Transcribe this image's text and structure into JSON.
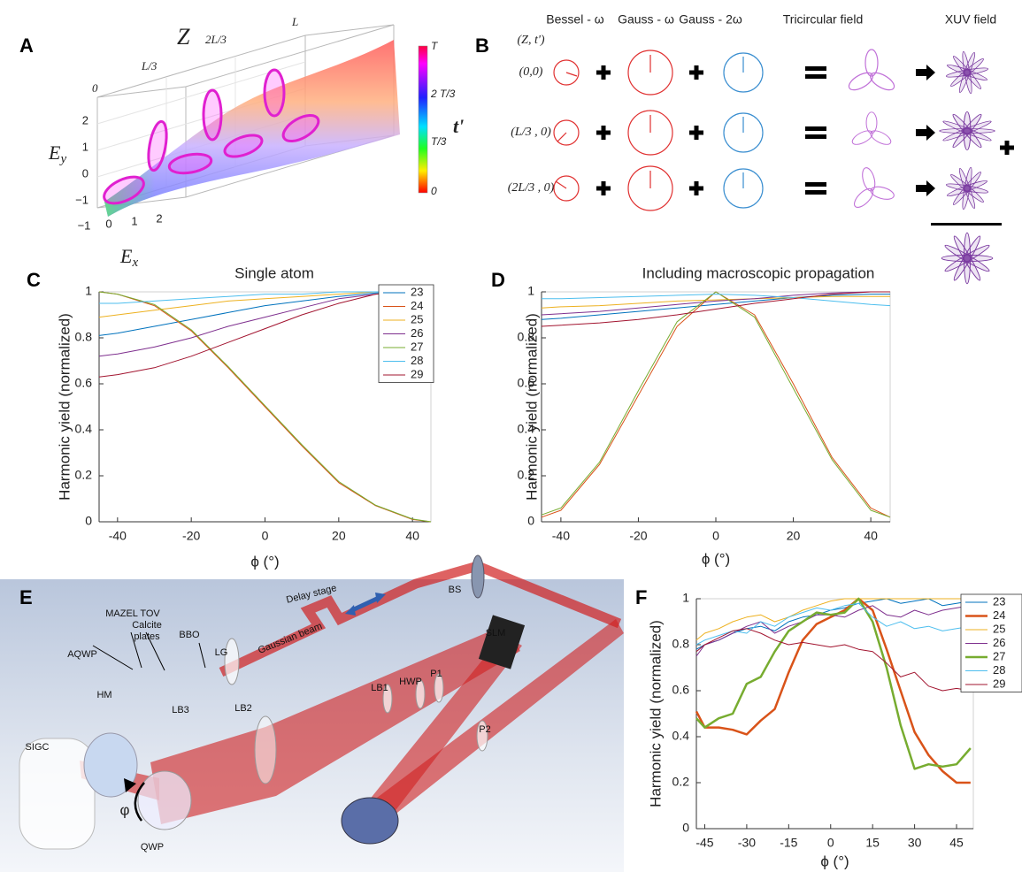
{
  "panel_a": {
    "label": "A",
    "z_title": "Z",
    "z_ticks": [
      "0",
      "L/3",
      "2L/3",
      "L"
    ],
    "ey": [
      "E",
      "y"
    ],
    "ex": [
      "E",
      "x"
    ],
    "ey_ticks": [
      "2",
      "1",
      "0",
      "−1"
    ],
    "ex_ticks": [
      "−1",
      "0",
      "1",
      "2"
    ],
    "colorbar_title": "t'",
    "colorbar_ticks": [
      "T",
      "2 T/3",
      "T/3",
      "0"
    ]
  },
  "panel_b": {
    "label": "B",
    "columns": [
      "Bessel - ω",
      "Gauss - ω",
      "Gauss - 2ω",
      "Tricircular field",
      "XUV field"
    ],
    "row_header": "(Z, t')",
    "rows": [
      "(0,0)",
      "(L/3 , 0)",
      "(2L/3 , 0)"
    ]
  },
  "panel_e": {
    "label": "E",
    "mazel_tov": "MAZEL TOV",
    "calcite_plates": [
      "Calcite",
      "plates"
    ],
    "bbo": "BBO",
    "aqwp": "AQWP",
    "lg": "LG",
    "gaussian_beam": "Gaussian beam",
    "delay_stage": "Delay stage",
    "bs": "BS",
    "slm": "SLM",
    "lb1": "LB1",
    "hwp": "HWP",
    "p1": "P1",
    "p2": "P2",
    "hm": "HM",
    "sigc": "SIGC",
    "lb3": "LB3",
    "lb2": "LB2",
    "phi": "φ",
    "qwp": "QWP"
  },
  "chart_data": [
    {
      "type": "line",
      "panel_label": "C",
      "title": "Single atom",
      "y_label": "Harmonic yield (normalized)",
      "x_label": "ϕ (°)",
      "x": [
        -45,
        -40,
        -30,
        -20,
        -10,
        0,
        10,
        20,
        30,
        40,
        45
      ],
      "xlim": [
        -45,
        45
      ],
      "xticks": [
        -40,
        -20,
        0,
        20,
        40
      ],
      "ylim": [
        0,
        1
      ],
      "yticks": [
        0,
        0.2,
        0.4,
        0.6,
        0.8,
        1
      ],
      "legend": "upper right",
      "series": [
        {
          "name": "23",
          "color": "#0072bd",
          "values": [
            0.81,
            0.82,
            0.85,
            0.88,
            0.91,
            0.94,
            0.96,
            0.98,
            0.995,
            1,
            1
          ]
        },
        {
          "name": "24",
          "color": "#d95319",
          "values": [
            1,
            0.99,
            0.94,
            0.83,
            0.67,
            0.5,
            0.33,
            0.17,
            0.07,
            0.01,
            0
          ]
        },
        {
          "name": "25",
          "color": "#edb120",
          "values": [
            0.89,
            0.9,
            0.92,
            0.94,
            0.96,
            0.97,
            0.98,
            0.99,
            1,
            1,
            1
          ]
        },
        {
          "name": "26",
          "color": "#7e2f8e",
          "values": [
            0.72,
            0.73,
            0.76,
            0.8,
            0.85,
            0.89,
            0.93,
            0.97,
            0.99,
            1,
            1
          ]
        },
        {
          "name": "27",
          "color": "#77ac30",
          "values": [
            1,
            0.99,
            0.945,
            0.835,
            0.675,
            0.505,
            0.335,
            0.175,
            0.072,
            0.012,
            0
          ]
        },
        {
          "name": "28",
          "color": "#4dbeee",
          "values": [
            0.95,
            0.95,
            0.96,
            0.97,
            0.98,
            0.99,
            0.99,
            1,
            1,
            1,
            1
          ]
        },
        {
          "name": "29",
          "color": "#a2142f",
          "values": [
            0.63,
            0.64,
            0.67,
            0.72,
            0.78,
            0.84,
            0.9,
            0.95,
            0.99,
            1,
            1
          ]
        }
      ]
    },
    {
      "type": "line",
      "panel_label": "D",
      "title": "Including macroscopic propagation",
      "y_label": "Harmonic yield (normalized)",
      "x_label": "ϕ (°)",
      "x": [
        -45,
        -40,
        -30,
        -20,
        -10,
        0,
        10,
        20,
        30,
        40,
        45
      ],
      "xlim": [
        -45,
        45
      ],
      "xticks": [
        -40,
        -20,
        0,
        20,
        40
      ],
      "ylim": [
        0,
        1
      ],
      "yticks": [
        0,
        0.2,
        0.4,
        0.6,
        0.8,
        1
      ],
      "series": [
        {
          "color": "#0072bd",
          "values": [
            0.88,
            0.885,
            0.9,
            0.915,
            0.93,
            0.945,
            0.96,
            0.975,
            0.985,
            0.99,
            0.99
          ]
        },
        {
          "color": "#d95319",
          "values": [
            0.02,
            0.05,
            0.25,
            0.55,
            0.85,
            1,
            0.9,
            0.6,
            0.28,
            0.06,
            0.02
          ]
        },
        {
          "color": "#edb120",
          "values": [
            0.93,
            0.935,
            0.94,
            0.95,
            0.96,
            0.965,
            0.97,
            0.975,
            0.98,
            0.98,
            0.98
          ]
        },
        {
          "color": "#7e2f8e",
          "values": [
            0.9,
            0.905,
            0.915,
            0.93,
            0.945,
            0.96,
            0.97,
            0.985,
            0.995,
            1,
            1
          ]
        },
        {
          "color": "#77ac30",
          "values": [
            0.03,
            0.06,
            0.26,
            0.57,
            0.87,
            1,
            0.89,
            0.58,
            0.27,
            0.05,
            0.02
          ]
        },
        {
          "color": "#4dbeee",
          "values": [
            0.97,
            0.97,
            0.975,
            0.98,
            0.985,
            0.99,
            0.985,
            0.975,
            0.96,
            0.945,
            0.94
          ]
        },
        {
          "color": "#a2142f",
          "values": [
            0.85,
            0.855,
            0.865,
            0.88,
            0.9,
            0.925,
            0.95,
            0.97,
            0.99,
            1,
            1
          ]
        }
      ]
    },
    {
      "type": "line",
      "panel_label": "F",
      "y_label": "Harmonic yield (normalized)",
      "x_label": "ϕ (°)",
      "x": [
        -48,
        -45,
        -40,
        -35,
        -30,
        -25,
        -20,
        -15,
        -10,
        -5,
        0,
        5,
        10,
        15,
        20,
        25,
        30,
        35,
        40,
        45,
        50
      ],
      "xlim": [
        -48,
        51
      ],
      "xticks": [
        -45,
        -30,
        -15,
        0,
        15,
        30,
        45
      ],
      "ylim": [
        0,
        1
      ],
      "yticks": [
        0,
        0.2,
        0.4,
        0.6,
        0.8,
        1
      ],
      "legend": "right",
      "series": [
        {
          "name": "23",
          "color": "#0072bd",
          "line_width": 1,
          "values": [
            0.78,
            0.8,
            0.82,
            0.85,
            0.87,
            0.88,
            0.86,
            0.9,
            0.92,
            0.93,
            0.95,
            0.96,
            0.98,
            0.99,
            1,
            0.98,
            0.99,
            1,
            0.97,
            0.98,
            0.99
          ]
        },
        {
          "name": "24",
          "color": "#d95319",
          "line_width": 2.5,
          "values": [
            0.51,
            0.44,
            0.44,
            0.43,
            0.41,
            0.47,
            0.52,
            0.68,
            0.82,
            0.89,
            0.92,
            0.95,
            1,
            0.95,
            0.78,
            0.6,
            0.42,
            0.32,
            0.25,
            0.2,
            0.2
          ]
        },
        {
          "name": "25",
          "color": "#edb120",
          "line_width": 1,
          "values": [
            0.82,
            0.85,
            0.87,
            0.9,
            0.92,
            0.93,
            0.9,
            0.92,
            0.95,
            0.97,
            0.99,
            1,
            1,
            1,
            1,
            1,
            1,
            1,
            1,
            1,
            1
          ]
        },
        {
          "name": "26",
          "color": "#7e2f8e",
          "line_width": 1,
          "values": [
            0.75,
            0.8,
            0.82,
            0.85,
            0.88,
            0.9,
            0.85,
            0.88,
            0.9,
            0.93,
            0.93,
            0.92,
            0.95,
            0.97,
            0.93,
            0.92,
            0.95,
            0.93,
            0.95,
            0.96,
            0.97
          ]
        },
        {
          "name": "27",
          "color": "#77ac30",
          "line_width": 2.5,
          "values": [
            0.48,
            0.44,
            0.48,
            0.5,
            0.63,
            0.66,
            0.77,
            0.86,
            0.9,
            0.94,
            0.93,
            0.94,
            1,
            0.9,
            0.7,
            0.45,
            0.26,
            0.28,
            0.27,
            0.28,
            0.35
          ]
        },
        {
          "name": "28",
          "color": "#4dbeee",
          "line_width": 1,
          "values": [
            0.8,
            0.82,
            0.84,
            0.86,
            0.85,
            0.9,
            0.88,
            0.92,
            0.94,
            0.96,
            0.95,
            0.97,
            0.98,
            0.92,
            0.88,
            0.9,
            0.87,
            0.88,
            0.86,
            0.87,
            0.88
          ]
        },
        {
          "name": "29",
          "color": "#a2142f",
          "line_width": 1,
          "values": [
            0.77,
            0.8,
            0.83,
            0.86,
            0.87,
            0.85,
            0.82,
            0.8,
            0.81,
            0.8,
            0.79,
            0.8,
            0.78,
            0.77,
            0.72,
            0.66,
            0.68,
            0.62,
            0.6,
            0.61,
            0.6
          ]
        }
      ]
    }
  ]
}
